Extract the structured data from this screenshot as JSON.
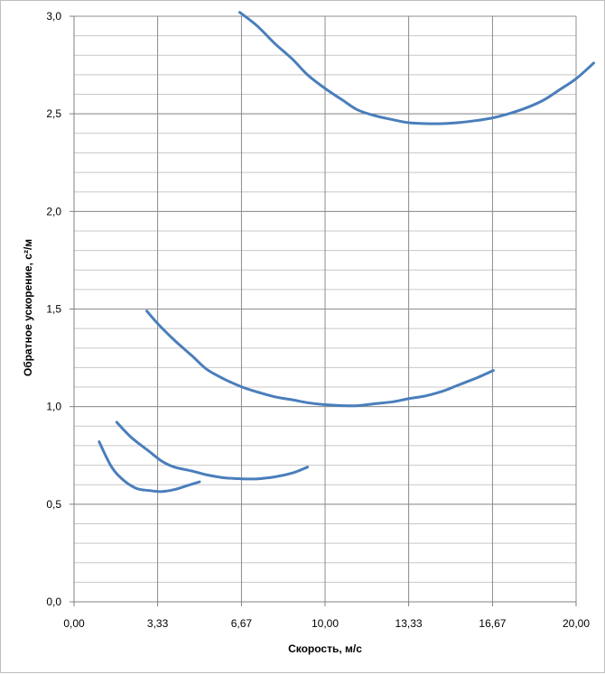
{
  "chart_data": {
    "type": "line",
    "xlabel": "Скорость, м/с",
    "ylabel": "Обратное ускорение, с²/м",
    "xlim": [
      0,
      20
    ],
    "ylim": [
      0,
      3.0
    ],
    "x_ticks": [
      0,
      3.33,
      6.67,
      10.0,
      13.33,
      16.67,
      20.0
    ],
    "x_tick_labels": [
      "0,00",
      "3,33",
      "6,67",
      "10,00",
      "13,33",
      "16,67",
      "20,00"
    ],
    "y_ticks": [
      0,
      0.5,
      1.0,
      1.5,
      2.0,
      2.5,
      3.0
    ],
    "y_tick_labels": [
      "0,0",
      "0,5",
      "1,0",
      "1,5",
      "2,0",
      "2,5",
      "3,0"
    ],
    "y_minor_step": 0.1,
    "grid": true,
    "legend": "none",
    "line_color": "#4a7ebb",
    "series": [
      {
        "x": [
          1.0,
          1.5,
          2.0,
          2.5,
          3.0,
          3.5,
          4.0,
          4.5,
          5.0
        ],
        "y": [
          0.82,
          0.69,
          0.62,
          0.58,
          0.57,
          0.565,
          0.575,
          0.595,
          0.615
        ]
      },
      {
        "x": [
          1.7,
          2.3,
          3.0,
          3.5,
          4.0,
          4.7,
          5.3,
          6.0,
          6.7,
          7.3,
          8.0,
          8.7,
          9.3
        ],
        "y": [
          0.92,
          0.84,
          0.77,
          0.72,
          0.69,
          0.67,
          0.65,
          0.635,
          0.63,
          0.63,
          0.64,
          0.66,
          0.69
        ]
      },
      {
        "x": [
          2.9,
          3.3,
          4.0,
          4.7,
          5.3,
          6.0,
          6.7,
          7.3,
          8.0,
          8.7,
          9.3,
          10.0,
          10.7,
          11.3,
          12.0,
          12.7,
          13.3,
          14.0,
          14.7,
          15.3,
          16.0,
          16.7
        ],
        "y": [
          1.49,
          1.43,
          1.34,
          1.26,
          1.19,
          1.14,
          1.1,
          1.075,
          1.05,
          1.035,
          1.02,
          1.01,
          1.005,
          1.005,
          1.015,
          1.025,
          1.04,
          1.055,
          1.08,
          1.11,
          1.145,
          1.185
        ]
      },
      {
        "x": [
          6.6,
          7.3,
          8.0,
          8.7,
          9.3,
          10.0,
          10.7,
          11.3,
          12.0,
          12.7,
          13.3,
          14.0,
          14.7,
          15.3,
          16.0,
          16.7,
          17.3,
          18.0,
          18.7,
          19.3,
          20.0,
          20.7
        ],
        "y": [
          3.02,
          2.95,
          2.86,
          2.78,
          2.7,
          2.63,
          2.57,
          2.52,
          2.49,
          2.47,
          2.455,
          2.45,
          2.45,
          2.455,
          2.465,
          2.48,
          2.5,
          2.53,
          2.57,
          2.62,
          2.68,
          2.76
        ]
      }
    ]
  }
}
